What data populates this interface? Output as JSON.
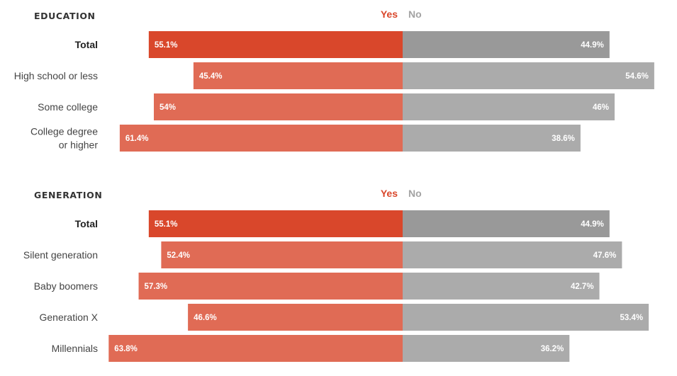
{
  "chart_data": {
    "type": "bar",
    "orientation": "diverging-horizontal",
    "colors": {
      "yes_total": "#d9472b",
      "yes": "#e06b55",
      "no_total": "#999999",
      "no": "#ababab",
      "yes_label": "#d9472b",
      "no_label": "#a3a3a3"
    },
    "groups": [
      {
        "title": "EDUCATION",
        "yes_label": "Yes",
        "no_label": "No",
        "rows": [
          {
            "label": [
              "Total"
            ],
            "yes": 55.1,
            "no": 44.9,
            "yes_text": "55.1%",
            "no_text": "44.9%",
            "total": true
          },
          {
            "label": [
              "High school or less"
            ],
            "yes": 45.4,
            "no": 54.6,
            "yes_text": "45.4%",
            "no_text": "54.6%",
            "total": false
          },
          {
            "label": [
              "Some college"
            ],
            "yes": 54,
            "no": 46,
            "yes_text": "54%",
            "no_text": "46%",
            "total": false
          },
          {
            "label": [
              "College degree",
              "or higher"
            ],
            "yes": 61.4,
            "no": 38.6,
            "yes_text": "61.4%",
            "no_text": "38.6%",
            "total": false
          }
        ]
      },
      {
        "title": "GENERATION",
        "yes_label": "Yes",
        "no_label": "No",
        "rows": [
          {
            "label": [
              "Total"
            ],
            "yes": 55.1,
            "no": 44.9,
            "yes_text": "55.1%",
            "no_text": "44.9%",
            "total": true
          },
          {
            "label": [
              "Silent generation"
            ],
            "yes": 52.4,
            "no": 47.6,
            "yes_text": "52.4%",
            "no_text": "47.6%",
            "total": false
          },
          {
            "label": [
              "Baby boomers"
            ],
            "yes": 57.3,
            "no": 42.7,
            "yes_text": "57.3%",
            "no_text": "42.7%",
            "total": false
          },
          {
            "label": [
              "Generation X"
            ],
            "yes": 46.6,
            "no": 53.4,
            "yes_text": "46.6%",
            "no_text": "53.4%",
            "total": false
          },
          {
            "label": [
              "Millennials"
            ],
            "yes": 63.8,
            "no": 36.2,
            "yes_text": "63.8%",
            "no_text": "36.2%",
            "total": false
          }
        ]
      }
    ]
  }
}
